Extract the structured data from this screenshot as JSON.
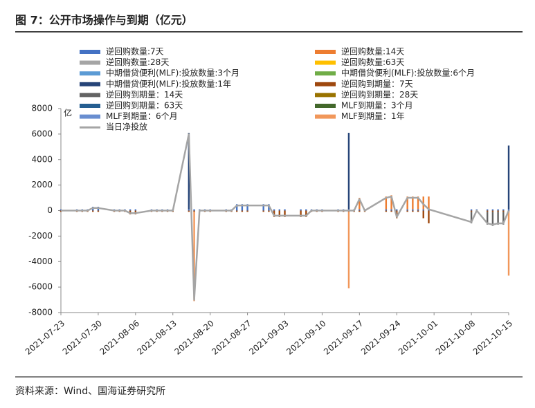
{
  "header": {
    "title": "图 7：公开市场操作与到期（亿元）"
  },
  "chart_data": {
    "type": "bar",
    "y_label": "亿",
    "xlim": [
      "2021-07-23",
      "2021-10-15"
    ],
    "xticks": [
      "2021-07-23",
      "2021-07-30",
      "2021-08-06",
      "2021-08-13",
      "2021-08-20",
      "2021-08-27",
      "2021-09-03",
      "2021-09-10",
      "2021-09-17",
      "2021-09-24",
      "2021-10-01",
      "2021-10-08",
      "2021-10-15"
    ],
    "ylim": [
      -8000,
      8000
    ],
    "yticks": [
      -8000,
      -6000,
      -4000,
      -2000,
      0,
      2000,
      4000,
      6000,
      8000
    ],
    "x": [
      "2021-07-23",
      "2021-07-26",
      "2021-07-27",
      "2021-07-28",
      "2021-07-29",
      "2021-07-30",
      "2021-08-02",
      "2021-08-03",
      "2021-08-04",
      "2021-08-05",
      "2021-08-06",
      "2021-08-09",
      "2021-08-10",
      "2021-08-11",
      "2021-08-12",
      "2021-08-13",
      "2021-08-16",
      "2021-08-17",
      "2021-08-18",
      "2021-08-19",
      "2021-08-20",
      "2021-08-23",
      "2021-08-24",
      "2021-08-25",
      "2021-08-26",
      "2021-08-27",
      "2021-08-30",
      "2021-08-31",
      "2021-09-01",
      "2021-09-02",
      "2021-09-03",
      "2021-09-06",
      "2021-09-07",
      "2021-09-08",
      "2021-09-09",
      "2021-09-10",
      "2021-09-13",
      "2021-09-14",
      "2021-09-15",
      "2021-09-16",
      "2021-09-17",
      "2021-09-18",
      "2021-09-22",
      "2021-09-23",
      "2021-09-24",
      "2021-09-26",
      "2021-09-27",
      "2021-09-28",
      "2021-09-29",
      "2021-09-30",
      "2021-10-08",
      "2021-10-09",
      "2021-10-11",
      "2021-10-12",
      "2021-10-13",
      "2021-10-14",
      "2021-10-15"
    ],
    "series": [
      {
        "name": "逆回购数量:7天",
        "color": "#4472c4",
        "values": [
          100,
          100,
          100,
          100,
          300,
          300,
          100,
          100,
          100,
          100,
          100,
          100,
          100,
          100,
          100,
          100,
          100,
          100,
          100,
          100,
          100,
          100,
          100,
          500,
          500,
          500,
          500,
          500,
          100,
          100,
          100,
          100,
          100,
          100,
          100,
          100,
          100,
          100,
          100,
          100,
          100,
          100,
          100,
          100,
          100,
          100,
          100,
          100,
          100,
          100,
          100,
          100,
          100,
          100,
          100,
          100,
          100
        ]
      },
      {
        "name": "逆回购数量:14天",
        "color": "#ed7d31",
        "x": [
          "2021-09-17",
          "2021-09-22",
          "2021-09-23",
          "2021-09-26",
          "2021-09-27",
          "2021-09-28",
          "2021-09-29",
          "2021-09-30"
        ],
        "values": [
          900,
          1000,
          1100,
          1000,
          1000,
          1000,
          1000,
          1000
        ]
      },
      {
        "name": "逆回购数量:28天",
        "color": "#a5a5a5",
        "x": [],
        "values": []
      },
      {
        "name": "逆回购数量:63天",
        "color": "#ffc000",
        "x": [],
        "values": []
      },
      {
        "name": "中期借贷便利(MLF):投放数量:3个月",
        "color": "#5b9bd5",
        "x": [],
        "values": []
      },
      {
        "name": "中期借贷便利(MLF):投放数量:6个月",
        "color": "#70ad47",
        "x": [],
        "values": []
      },
      {
        "name": "中期借贷便利(MLF):投放数量:1年",
        "color": "#264478",
        "x": [
          "2021-08-16",
          "2021-09-15",
          "2021-10-15"
        ],
        "values": [
          6000,
          6000,
          5000
        ]
      },
      {
        "name": "逆回购到期量：7天",
        "color": "#9e480e",
        "values": [
          -100,
          -100,
          -100,
          -100,
          -100,
          -100,
          -100,
          -100,
          -100,
          -300,
          -300,
          -100,
          -100,
          -100,
          -100,
          -100,
          -100,
          -100,
          -100,
          -100,
          -100,
          -100,
          -100,
          -100,
          -100,
          -100,
          -100,
          -100,
          -500,
          -500,
          -500,
          -500,
          -500,
          -100,
          -100,
          -100,
          -100,
          -100,
          -100,
          -100,
          -100,
          -100,
          -100,
          -100,
          -600,
          -100,
          -100,
          -100,
          -600,
          -1000,
          -100,
          -100,
          -100,
          -100,
          -100,
          -100,
          -100
        ]
      },
      {
        "name": "逆回购到期量：14天",
        "color": "#636363",
        "x": [
          "2021-10-08",
          "2021-10-11",
          "2021-10-12",
          "2021-10-13",
          "2021-10-14"
        ],
        "values": [
          -900,
          -1000,
          -1100,
          -1000,
          -1000
        ]
      },
      {
        "name": "逆回购到期量：28天",
        "color": "#997300",
        "x": [],
        "values": []
      },
      {
        "name": "逆回购到期量：63天",
        "color": "#255e91",
        "x": [],
        "values": []
      },
      {
        "name": "MLF到期量：3个月",
        "color": "#43682b",
        "x": [],
        "values": []
      },
      {
        "name": "MLF到期量：6个月",
        "color": "#698ed0",
        "x": [],
        "values": []
      },
      {
        "name": "MLF到期量：1年",
        "color": "#f1975a",
        "x": [
          "2021-08-17",
          "2021-09-15",
          "2021-10-15"
        ],
        "values": [
          -7000,
          -6000,
          -5000
        ]
      },
      {
        "name": "当日净投放",
        "color": "#a5a5a5",
        "type": "line",
        "values": [
          0,
          0,
          0,
          0,
          200,
          200,
          0,
          0,
          0,
          -200,
          -200,
          0,
          0,
          0,
          0,
          0,
          6000,
          -7000,
          0,
          0,
          0,
          0,
          0,
          400,
          400,
          400,
          400,
          400,
          -400,
          -400,
          -400,
          -400,
          -400,
          0,
          0,
          0,
          0,
          0,
          0,
          0,
          900,
          0,
          1000,
          1100,
          -500,
          1000,
          1000,
          1000,
          500,
          100,
          -900,
          0,
          -1000,
          -1100,
          -1000,
          -1000,
          0
        ]
      }
    ]
  },
  "footer": {
    "source": "资料来源：Wind、国海证券研究所"
  }
}
